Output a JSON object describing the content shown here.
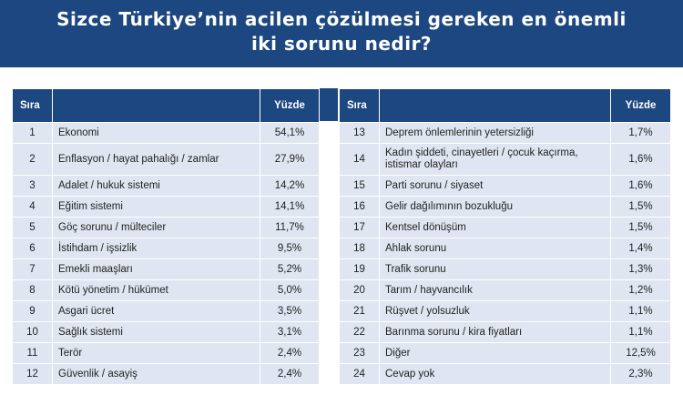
{
  "title": {
    "line1": "Sizce Türkiye’nin acilen çözülmesi gereken en önemli",
    "line2": "iki sorunu nedir?"
  },
  "table_headers": {
    "rank": "Sıra",
    "item": "",
    "percent": "Yüzde"
  },
  "left_rows": [
    {
      "rank": "1",
      "item": "Ekonomi",
      "percent": "54,1%"
    },
    {
      "rank": "2",
      "item": "Enflasyon / hayat pahalığı / zamlar",
      "percent": "27,9%"
    },
    {
      "rank": "3",
      "item": "Adalet / hukuk sistemi",
      "percent": "14,2%"
    },
    {
      "rank": "4",
      "item": "Eğitim sistemi",
      "percent": "14,1%"
    },
    {
      "rank": "5",
      "item": "Göç sorunu / mülteciler",
      "percent": "11,7%"
    },
    {
      "rank": "6",
      "item": "İstihdam / işsizlik",
      "percent": "9,5%"
    },
    {
      "rank": "7",
      "item": "Emekli maaşları",
      "percent": "5,2%"
    },
    {
      "rank": "8",
      "item": "Kötü yönetim / hükümet",
      "percent": "5,0%"
    },
    {
      "rank": "9",
      "item": "Asgari ücret",
      "percent": "3,5%"
    },
    {
      "rank": "10",
      "item": "Sağlık sistemi",
      "percent": "3,1%"
    },
    {
      "rank": "11",
      "item": "Terör",
      "percent": "2,4%"
    },
    {
      "rank": "12",
      "item": "Güvenlik / asayiş",
      "percent": "2,4%"
    }
  ],
  "right_rows": [
    {
      "rank": "13",
      "item": "Deprem önlemlerinin yetersizliği",
      "percent": "1,7%"
    },
    {
      "rank": "14",
      "item": "Kadın şiddeti, cinayetleri / çocuk kaçırma, istismar olayları",
      "percent": "1,6%"
    },
    {
      "rank": "15",
      "item": "Parti sorunu / siyaset",
      "percent": "1,6%"
    },
    {
      "rank": "16",
      "item": "Gelir dağılımının bozukluğu",
      "percent": "1,5%"
    },
    {
      "rank": "17",
      "item": "Kentsel dönüşüm",
      "percent": "1,5%"
    },
    {
      "rank": "18",
      "item": "Ahlak sorunu",
      "percent": "1,4%"
    },
    {
      "rank": "19",
      "item": "Trafik sorunu",
      "percent": "1,3%"
    },
    {
      "rank": "20",
      "item": "Tarım / hayvancılık",
      "percent": "1,2%"
    },
    {
      "rank": "21",
      "item": "Rüşvet / yolsuzluk",
      "percent": "1,1%"
    },
    {
      "rank": "22",
      "item": "Barınma sorunu / kira fiyatları",
      "percent": "1,1%"
    },
    {
      "rank": "23",
      "item": "Diğer",
      "percent": "12,5%"
    },
    {
      "rank": "24",
      "item": "Cevap yok",
      "percent": "2,3%"
    }
  ],
  "colors": {
    "header_bg": "#1c4780",
    "row_bg": "#dfe6f1"
  }
}
